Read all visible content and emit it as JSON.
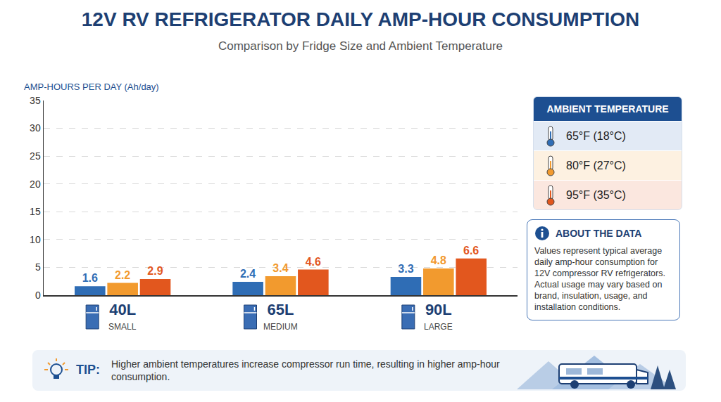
{
  "chart_data": {
    "type": "bar",
    "title": "12V RV REFRIGERATOR DAILY AMP-HOUR CONSUMPTION",
    "subtitle": "Comparison by Fridge Size and Ambient Temperature",
    "y_label": "AMP-HOURS PER DAY (Ah/day)",
    "categories": [
      "40L",
      "65L",
      "90L"
    ],
    "category_sizes": [
      "SMALL",
      "MEDIUM",
      "LARGE"
    ],
    "series": [
      {
        "name": "65°F (18°C)",
        "color": "#2f6db5",
        "values": [
          1.6,
          2.4,
          3.3
        ]
      },
      {
        "name": "80°F (27°C)",
        "color": "#f29a2e",
        "values": [
          2.2,
          3.4,
          4.8
        ]
      },
      {
        "name": "95°F (35°C)",
        "color": "#e2571e",
        "values": [
          2.9,
          4.6,
          6.6
        ]
      }
    ],
    "ylim": [
      0,
      35
    ],
    "yticks": [
      0,
      5,
      10,
      15,
      20,
      25,
      30,
      35
    ],
    "grid": true,
    "data_labels": true,
    "legend": "right",
    "legend_title": "AMBIENT TEMPERATURE",
    "about": {
      "title": "ABOUT THE DATA",
      "text": "Values represent typical average daily amp-hour consumption for 12V compressor RV refrigerators. Actual usage may vary based on brand, insulation, usage, and installation conditions."
    },
    "tip": {
      "label": "TIP:",
      "text": "Higher ambient temperatures increase compressor run time, resulting in higher amp-hour consumption."
    }
  }
}
